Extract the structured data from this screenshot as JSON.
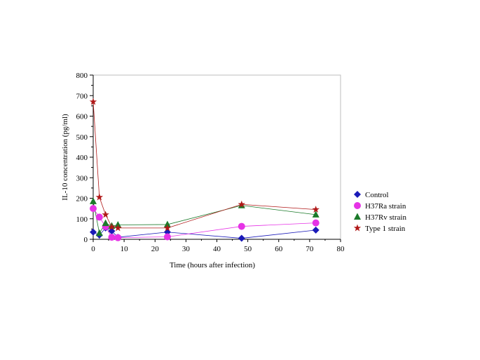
{
  "chart_data": {
    "type": "scatter",
    "xlabel": "Time (hours after infection)",
    "ylabel": "IL-10 concentration (pg/ml)",
    "xlim": [
      0,
      80
    ],
    "ylim": [
      0,
      800
    ],
    "x_ticks": [
      "0",
      "10",
      "20",
      "30",
      "40",
      "50",
      "60",
      "70",
      "80"
    ],
    "y_ticks": [
      "0",
      "100",
      "200",
      "300",
      "400",
      "500",
      "600",
      "700",
      "800"
    ],
    "grid": false,
    "legend_position": "right",
    "series": [
      {
        "name": "Control",
        "marker": "diamond",
        "color": "#1a1ab8",
        "x": [
          0,
          2,
          4,
          6,
          8,
          24,
          48,
          72
        ],
        "y": [
          35,
          20,
          55,
          40,
          10,
          35,
          5,
          45
        ]
      },
      {
        "name": "H37Ra strain",
        "marker": "circle",
        "color": "#e633e6",
        "x": [
          0,
          2,
          4,
          6,
          8,
          24,
          48,
          72
        ],
        "y": [
          150,
          108,
          62,
          10,
          8,
          12,
          63,
          80
        ]
      },
      {
        "name": "H37Rv strain",
        "marker": "triangle",
        "color": "#1b7a2a",
        "x": [
          0,
          2,
          4,
          6,
          8,
          24,
          48,
          72
        ],
        "y": [
          185,
          30,
          78,
          65,
          70,
          72,
          165,
          120
        ]
      },
      {
        "name": "Type 1 strain",
        "marker": "star",
        "color": "#b01818",
        "x": [
          0,
          2,
          4,
          6,
          8,
          24,
          48,
          72
        ],
        "y": [
          670,
          205,
          120,
          60,
          55,
          55,
          170,
          145
        ]
      }
    ]
  }
}
